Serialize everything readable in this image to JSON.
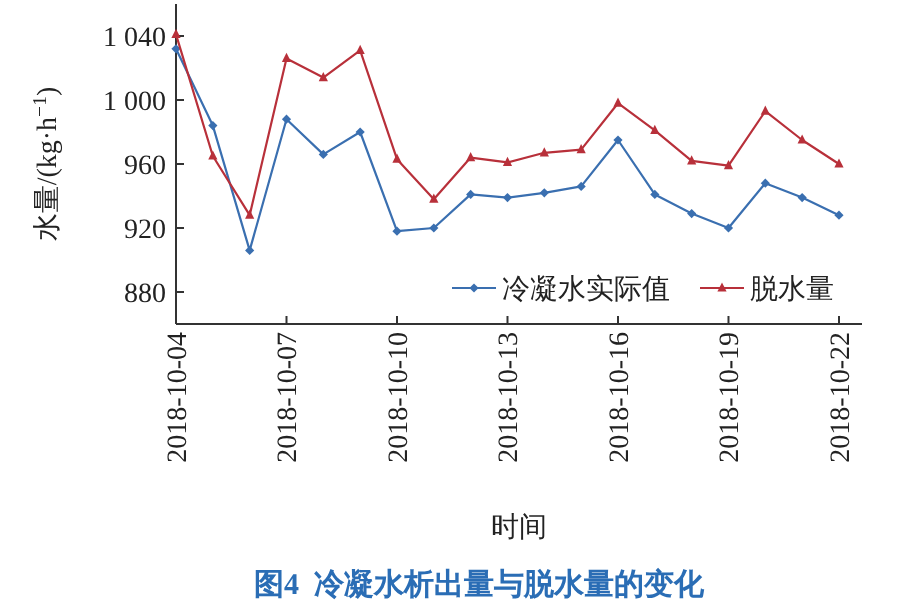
{
  "chart_data": {
    "type": "line",
    "title": "图4  冷凝水析出量与脱水量的变化",
    "xlabel": "时间",
    "ylabel": "水量/(kg·h$^{−1}$)",
    "x": [
      "2018-10-04",
      "2018-10-05",
      "2018-10-06",
      "2018-10-07",
      "2018-10-08",
      "2018-10-09",
      "2018-10-10",
      "2018-10-11",
      "2018-10-12",
      "2018-10-13",
      "2018-10-14",
      "2018-10-15",
      "2018-10-16",
      "2018-10-17",
      "2018-10-18",
      "2018-10-19",
      "2018-10-20",
      "2018-10-21",
      "2018-10-22"
    ],
    "series": [
      {
        "name": "冷凝水实际值",
        "color": "#3a6fb0",
        "marker": "diamond",
        "values": [
          1032,
          984,
          906,
          988,
          966,
          980,
          918,
          920,
          941,
          939,
          942,
          946,
          975,
          941,
          929,
          920,
          948,
          939,
          928
        ]
      },
      {
        "name": "脱水量",
        "color": "#b8303a",
        "marker": "triangle",
        "values": [
          1041,
          965,
          928,
          1026,
          1014,
          1031,
          963,
          938,
          964,
          961,
          967,
          969,
          998,
          981,
          962,
          959,
          993,
          975,
          960
        ]
      }
    ],
    "xlim": [
      "2018-10-04",
      "2018-10-22T15:00"
    ],
    "xticks": [
      "2018-10-04",
      "2018-10-07",
      "2018-10-10",
      "2018-10-13",
      "2018-10-16",
      "2018-10-19",
      "2018-10-22"
    ],
    "ylim": [
      860,
      1060
    ],
    "yticks": [
      880,
      920,
      960,
      {
        "value": 1000,
        "label": "1 000"
      },
      {
        "value": 1040,
        "label": "1 040"
      }
    ],
    "grid": false,
    "legend": "bottom right",
    "line_style": "solid"
  }
}
